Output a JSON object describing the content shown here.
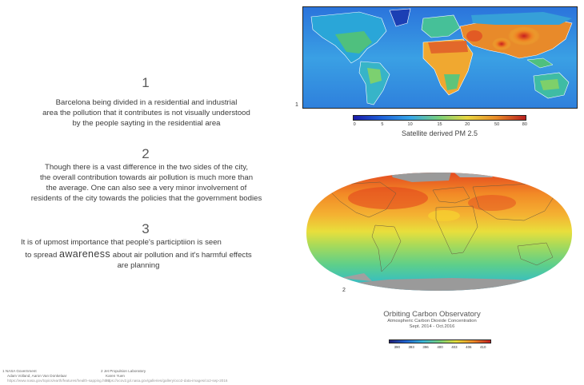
{
  "sections": [
    {
      "number": "1",
      "lines": [
        "Barcelona being divided in a residential and industrial",
        "area the pollution that it contributes is not visually understood",
        "by the people sayting in the residential area"
      ]
    },
    {
      "number": "2",
      "lines": [
        "Though there is a vast difference in the two sides of the city,",
        "the overall contribution towards air pollution is much more than",
        "the average.  One can also see a very minor involvement of",
        "residents of the city towards the policies that the government bodies"
      ]
    },
    {
      "number": "3",
      "line1": "It is of upmost importance that people's participtiion is seen",
      "line2_before": "to spread",
      "line2_highlight": "awareness",
      "line2_after": "about air pollution and it's harmful effects",
      "line3": "are planning"
    }
  ],
  "map1": {
    "label": "1",
    "colorbar_ticks": [
      "0",
      "5",
      "10",
      "15",
      "20",
      "50",
      "80"
    ],
    "colors": [
      "#1a1aa8",
      "#1e5fd8",
      "#36a6e8",
      "#7ad07a",
      "#e8d640",
      "#e88a28",
      "#b81e1e"
    ],
    "caption": "Satellite derived PM 2.5"
  },
  "map2": {
    "label": "2",
    "title": "Orbiting Carbon Observatory",
    "subtitle": "Atmospheric Carbon Dioxide Concentration",
    "dates": "Sept. 2014 - Oct.2016",
    "colorbar_ticks": [
      "390",
      "393",
      "396",
      "400",
      "403",
      "406",
      "410"
    ],
    "colors": [
      "#20207a",
      "#1f63d0",
      "#3ab6d8",
      "#78d27a",
      "#e6de3a",
      "#ee8a28",
      "#c32222"
    ]
  },
  "footnotes": {
    "left_title": "1  NASA Government",
    "left_author": "Adam Volland, Aaron Van Donkelaar",
    "left_url": "https://www.nasa.gov/topics/earth/features/health-sapping.html",
    "right_title": "2  Jet Propulsion Laboratory",
    "right_author": "Karen Yuen",
    "right_url": "https://ocov2.jpl.nasa.gov/galleries/gallery/oco2-data-images/co2-sep-2016"
  },
  "colors": {
    "ocean_blue": "#2f6fdc",
    "land_grey": "#9a9a9a",
    "co2_orange": "#f09a2a"
  }
}
